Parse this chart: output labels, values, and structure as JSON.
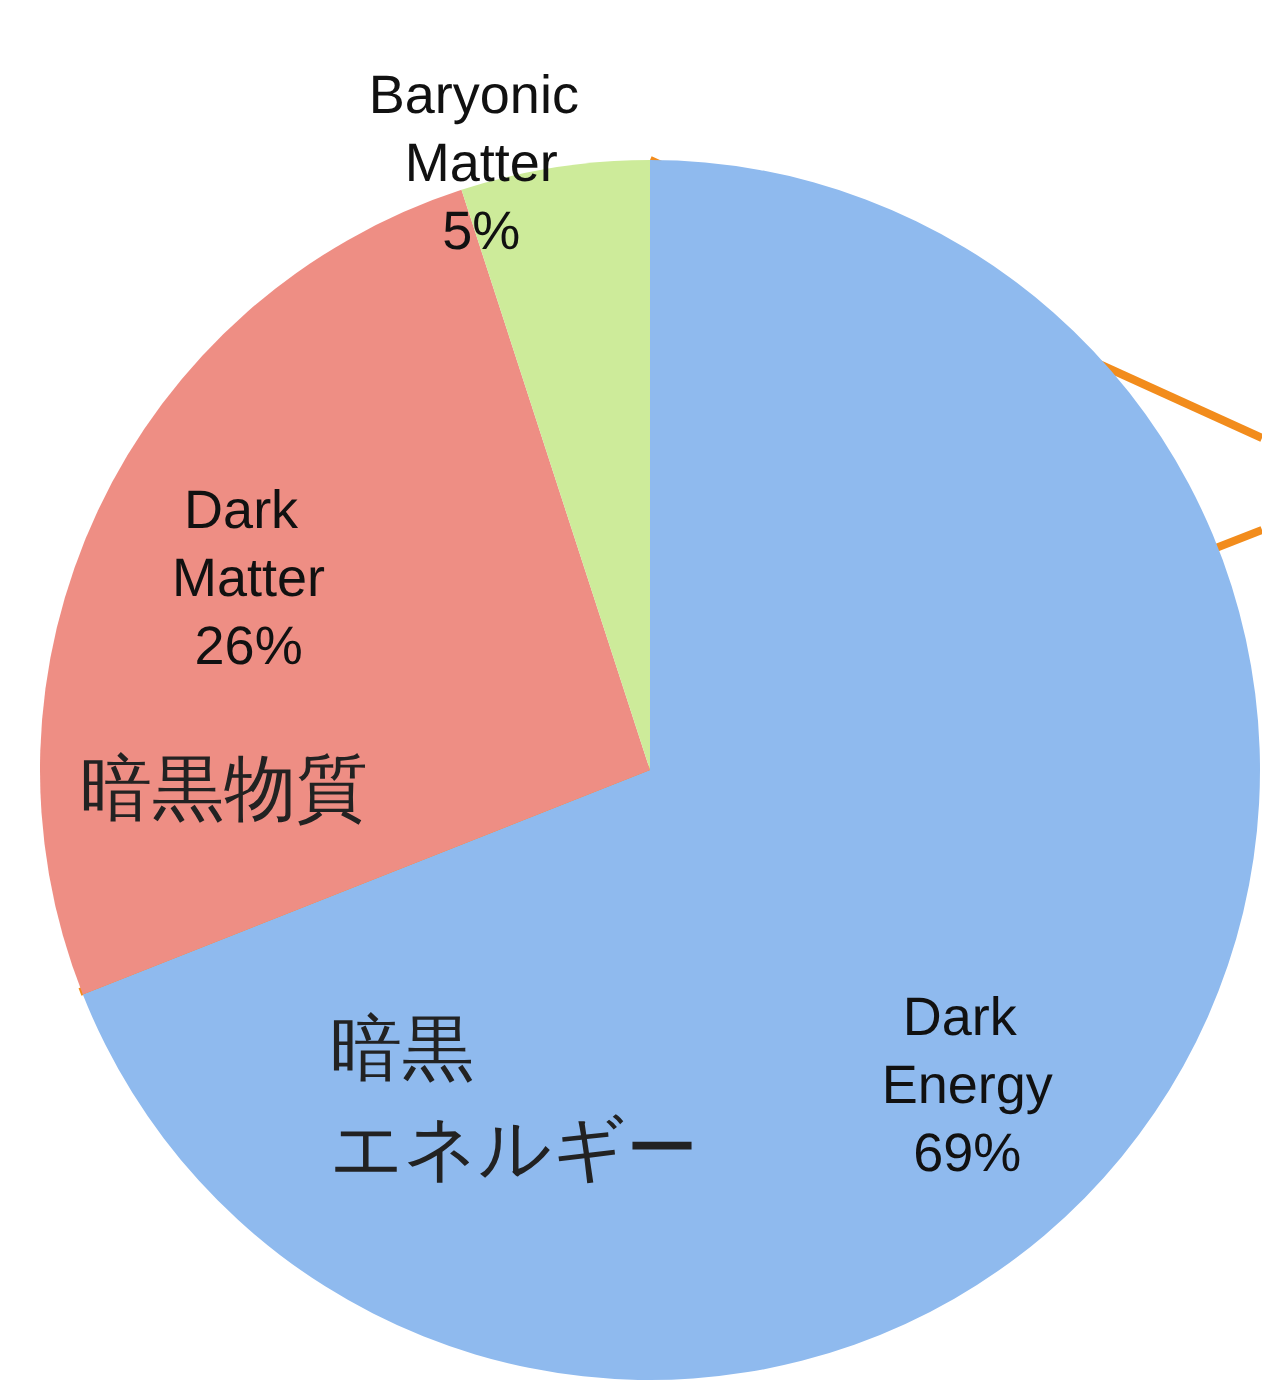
{
  "chart_data": {
    "type": "pie",
    "categories": [
      "Dark Energy",
      "Dark Matter",
      "Baryonic Matter"
    ],
    "values": [
      69,
      26,
      5
    ],
    "colors": [
      "#8fbaee",
      "#ee8e84",
      "#cdeb9a"
    ],
    "value_labels": [
      "69%",
      "26%",
      "5%"
    ],
    "annotations": [
      "暗黒物質",
      "暗黒",
      "エネルギー"
    ]
  }
}
